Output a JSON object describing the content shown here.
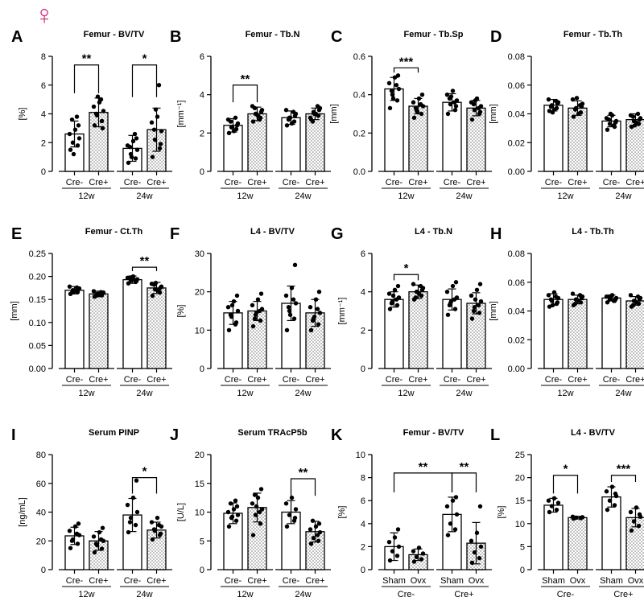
{
  "figure": {
    "sex_symbol": "♀",
    "symbol_color": "#d6307a"
  },
  "colors": {
    "axis": "#000000",
    "bar_fill": "#ffffff",
    "dot": "#000000",
    "stipple": "#6e6e6e"
  },
  "chart_data": [
    {
      "panel": "A",
      "title": "Femur - BV/TV",
      "type": "bar",
      "ylabel": "[%]",
      "ylim": [
        0,
        8
      ],
      "yticks": [
        0,
        2,
        4,
        6,
        8
      ],
      "ytick_labels": [
        "0",
        "2",
        "4",
        "6",
        "8"
      ],
      "categories": [
        "Cre-",
        "Cre+",
        "Cre-",
        "Cre+"
      ],
      "groups": [
        "12w",
        "24w"
      ],
      "values": [
        2.6,
        4.1,
        1.6,
        2.9
      ],
      "sd": [
        0.9,
        1.0,
        0.9,
        1.5
      ],
      "points": [
        [
          1.5,
          1.8,
          2.0,
          2.3,
          2.6,
          2.9,
          3.2,
          3.6,
          3.8,
          1.2
        ],
        [
          3.2,
          3.5,
          3.9,
          4.2,
          4.5,
          4.8,
          3.0,
          4.0,
          5.0,
          5.2
        ],
        [
          0.6,
          0.9,
          1.2,
          1.5,
          1.8,
          2.1,
          2.3,
          1.7,
          2.6,
          1.0
        ],
        [
          1.0,
          1.6,
          2.2,
          2.8,
          3.4,
          3.8,
          1.9,
          2.9,
          6.0,
          4.3
        ]
      ],
      "significance": [
        {
          "pair": [
            0,
            1
          ],
          "label": "**",
          "y": 7.4
        },
        {
          "pair": [
            2,
            3
          ],
          "label": "*",
          "y": 7.4
        }
      ]
    },
    {
      "panel": "B",
      "title": "Femur - Tb.N",
      "type": "bar",
      "ylabel": "[mm⁻¹]",
      "ylim": [
        0,
        6
      ],
      "yticks": [
        0,
        2,
        4,
        6
      ],
      "ytick_labels": [
        "0",
        "2",
        "4",
        "6"
      ],
      "categories": [
        "Cre-",
        "Cre+",
        "Cre-",
        "Cre+"
      ],
      "groups": [
        "12w",
        "24w"
      ],
      "values": [
        2.4,
        3.0,
        2.8,
        3.0
      ],
      "sd": [
        0.35,
        0.35,
        0.35,
        0.3
      ],
      "points": [
        [
          2.0,
          2.2,
          2.3,
          2.5,
          2.7,
          2.1,
          2.4,
          2.6,
          2.8,
          2.3
        ],
        [
          2.6,
          2.8,
          3.0,
          3.2,
          3.4,
          2.9,
          3.1,
          3.3,
          2.7,
          3.0
        ],
        [
          2.4,
          2.6,
          2.8,
          3.0,
          3.2,
          2.5,
          2.9,
          2.7,
          3.1,
          2.8
        ],
        [
          2.7,
          2.9,
          3.1,
          3.3,
          2.8,
          3.0,
          3.2,
          2.6,
          3.4,
          3.0
        ]
      ],
      "significance": [
        {
          "pair": [
            0,
            1
          ],
          "label": "**",
          "y": 4.5
        }
      ]
    },
    {
      "panel": "C",
      "title": "Femur - Tb.Sp",
      "type": "bar",
      "ylabel": "[mm]",
      "ylim": [
        0,
        0.6
      ],
      "yticks": [
        0,
        0.2,
        0.4,
        0.6
      ],
      "ytick_labels": [
        "0.0",
        "0.2",
        "0.4",
        "0.6"
      ],
      "categories": [
        "Cre-",
        "Cre+",
        "Cre-",
        "Cre+"
      ],
      "groups": [
        "12w",
        "24w"
      ],
      "values": [
        0.43,
        0.34,
        0.36,
        0.33
      ],
      "sd": [
        0.06,
        0.04,
        0.045,
        0.04
      ],
      "points": [
        [
          0.33,
          0.37,
          0.4,
          0.43,
          0.46,
          0.49,
          0.5,
          0.42,
          0.45,
          0.38
        ],
        [
          0.28,
          0.3,
          0.32,
          0.34,
          0.36,
          0.38,
          0.4,
          0.33,
          0.35,
          0.31
        ],
        [
          0.3,
          0.32,
          0.35,
          0.37,
          0.4,
          0.42,
          0.34,
          0.38,
          0.36,
          0.39
        ],
        [
          0.27,
          0.3,
          0.32,
          0.34,
          0.36,
          0.38,
          0.31,
          0.35,
          0.33,
          0.37
        ]
      ],
      "significance": [
        {
          "pair": [
            0,
            1
          ],
          "label": "***",
          "y": 0.54
        }
      ]
    },
    {
      "panel": "D",
      "title": "Femur - Tb.Th",
      "type": "bar",
      "ylabel": "[mm]",
      "ylim": [
        0,
        0.08
      ],
      "yticks": [
        0,
        0.02,
        0.04,
        0.06,
        0.08
      ],
      "ytick_labels": [
        "0.00",
        "0.02",
        "0.04",
        "0.06",
        "0.08"
      ],
      "categories": [
        "Cre-",
        "Cre+",
        "Cre-",
        "Cre+"
      ],
      "groups": [
        "12w",
        "24w"
      ],
      "values": [
        0.046,
        0.044,
        0.035,
        0.036
      ],
      "sd": [
        0.004,
        0.005,
        0.004,
        0.004
      ],
      "points": [
        [
          0.042,
          0.044,
          0.046,
          0.048,
          0.05,
          0.043,
          0.047,
          0.045,
          0.049,
          0.041
        ],
        [
          0.038,
          0.041,
          0.044,
          0.047,
          0.05,
          0.04,
          0.045,
          0.043,
          0.046,
          0.051
        ],
        [
          0.029,
          0.031,
          0.033,
          0.035,
          0.037,
          0.039,
          0.034,
          0.036,
          0.032,
          0.04
        ],
        [
          0.031,
          0.033,
          0.035,
          0.037,
          0.039,
          0.034,
          0.036,
          0.038,
          0.04,
          0.032
        ]
      ],
      "significance": []
    },
    {
      "panel": "E",
      "title": "Femur - Ct.Th",
      "type": "bar",
      "ylabel": "[mm]",
      "ylim": [
        0,
        0.25
      ],
      "yticks": [
        0,
        0.05,
        0.1,
        0.15,
        0.2,
        0.25
      ],
      "ytick_labels": [
        "0.00",
        "0.05",
        "0.10",
        "0.15",
        "0.20",
        "0.25"
      ],
      "categories": [
        "Cre-",
        "Cre+",
        "Cre-",
        "Cre+"
      ],
      "groups": [
        "12w",
        "24w"
      ],
      "values": [
        0.17,
        0.162,
        0.193,
        0.175
      ],
      "sd": [
        0.008,
        0.006,
        0.008,
        0.012
      ],
      "points": [
        [
          0.162,
          0.166,
          0.17,
          0.174,
          0.178,
          0.168,
          0.172,
          0.165,
          0.176,
          0.169
        ],
        [
          0.156,
          0.159,
          0.162,
          0.165,
          0.168,
          0.16,
          0.163,
          0.158,
          0.166,
          0.161
        ],
        [
          0.185,
          0.188,
          0.191,
          0.194,
          0.197,
          0.2,
          0.19,
          0.196,
          0.192,
          0.198
        ],
        [
          0.158,
          0.165,
          0.172,
          0.178,
          0.184,
          0.17,
          0.176,
          0.182,
          0.168,
          0.186
        ]
      ],
      "significance": [
        {
          "pair": [
            2,
            3
          ],
          "label": "**",
          "y": 0.22
        }
      ]
    },
    {
      "panel": "F",
      "title": "L4 - BV/TV",
      "type": "bar",
      "ylabel": "[%]",
      "ylim": [
        0,
        30
      ],
      "yticks": [
        0,
        10,
        20,
        30
      ],
      "ytick_labels": [
        "0",
        "10",
        "20",
        "30"
      ],
      "categories": [
        "Cre-",
        "Cre+",
        "Cre-",
        "Cre+"
      ],
      "groups": [
        "12w",
        "24w"
      ],
      "values": [
        14.5,
        15.0,
        17.0,
        14.5
      ],
      "sd": [
        3.0,
        2.5,
        4.5,
        3.5
      ],
      "points": [
        [
          10.0,
          12.0,
          13.5,
          15.0,
          16.0,
          17.5,
          19.0,
          14.0,
          11.5,
          16.5
        ],
        [
          11.0,
          12.5,
          14.0,
          15.5,
          16.5,
          18.0,
          19.5,
          13.0,
          15.0,
          14.5
        ],
        [
          10.0,
          13.0,
          15.0,
          17.0,
          19.0,
          21.0,
          27.0,
          16.0,
          18.0,
          14.0
        ],
        [
          10.0,
          11.5,
          13.0,
          14.5,
          16.0,
          18.0,
          20.0,
          12.5,
          15.5,
          13.5
        ]
      ],
      "significance": []
    },
    {
      "panel": "G",
      "title": "L4 - Tb.N",
      "type": "bar",
      "ylabel": "[mm⁻¹]",
      "ylim": [
        0,
        6
      ],
      "yticks": [
        0,
        2,
        4,
        6
      ],
      "ytick_labels": [
        "0",
        "2",
        "4",
        "6"
      ],
      "categories": [
        "Cre-",
        "Cre+",
        "Cre-",
        "Cre+"
      ],
      "groups": [
        "12w",
        "24w"
      ],
      "values": [
        3.6,
        4.0,
        3.6,
        3.4
      ],
      "sd": [
        0.4,
        0.35,
        0.55,
        0.55
      ],
      "points": [
        [
          3.1,
          3.3,
          3.5,
          3.7,
          3.9,
          4.1,
          4.3,
          3.4,
          3.6,
          3.8
        ],
        [
          3.6,
          3.8,
          4.0,
          4.2,
          4.4,
          3.9,
          4.1,
          3.7,
          4.3,
          4.0
        ],
        [
          2.8,
          3.1,
          3.4,
          3.7,
          4.0,
          4.3,
          4.5,
          3.3,
          3.6,
          3.5
        ],
        [
          2.6,
          2.9,
          3.2,
          3.5,
          3.8,
          4.1,
          4.4,
          3.0,
          3.3,
          3.6
        ]
      ],
      "significance": [
        {
          "pair": [
            0,
            1
          ],
          "label": "*",
          "y": 4.9
        }
      ]
    },
    {
      "panel": "H",
      "title": "L4 - Tb.Th",
      "type": "bar",
      "ylabel": "[mm]",
      "ylim": [
        0,
        0.08
      ],
      "yticks": [
        0,
        0.02,
        0.04,
        0.06,
        0.08
      ],
      "ytick_labels": [
        "0.00",
        "0.02",
        "0.04",
        "0.06",
        "0.08"
      ],
      "categories": [
        "Cre-",
        "Cre+",
        "Cre-",
        "Cre+"
      ],
      "groups": [
        "12w",
        "24w"
      ],
      "values": [
        0.048,
        0.048,
        0.049,
        0.047
      ],
      "sd": [
        0.004,
        0.003,
        0.002,
        0.003
      ],
      "points": [
        [
          0.043,
          0.045,
          0.047,
          0.049,
          0.051,
          0.053,
          0.046,
          0.048,
          0.05,
          0.044
        ],
        [
          0.044,
          0.046,
          0.048,
          0.05,
          0.052,
          0.047,
          0.049,
          0.045,
          0.051,
          0.048
        ],
        [
          0.046,
          0.047,
          0.048,
          0.049,
          0.05,
          0.051,
          0.048,
          0.05,
          0.047,
          0.049
        ],
        [
          0.043,
          0.045,
          0.047,
          0.049,
          0.051,
          0.046,
          0.048,
          0.044,
          0.05,
          0.047
        ]
      ],
      "significance": []
    },
    {
      "panel": "I",
      "title": "Serum PINP",
      "type": "bar",
      "ylabel": "[ng/mL]",
      "ylim": [
        0,
        80
      ],
      "yticks": [
        0,
        20,
        40,
        60,
        80
      ],
      "ytick_labels": [
        "0",
        "20",
        "40",
        "60",
        "80"
      ],
      "categories": [
        "Cre-",
        "Cre+",
        "Cre-",
        "Cre+"
      ],
      "groups": [
        "12w",
        "24w"
      ],
      "values": [
        23.5,
        20.0,
        38.0,
        27.5
      ],
      "sd": [
        6.0,
        6.5,
        11.5,
        5.5
      ],
      "points": [
        [
          15.0,
          18.0,
          21.0,
          24.0,
          27.0,
          30.0,
          32.0,
          20.0,
          25.0
        ],
        [
          12.0,
          14.5,
          17.0,
          20.0,
          23.0,
          26.0,
          29.0,
          18.0,
          21.0
        ],
        [
          26.0,
          31.0,
          36.0,
          40.0,
          45.0,
          50.0,
          62.0,
          33.0
        ],
        [
          21.0,
          24.0,
          27.0,
          30.0,
          33.0,
          36.0,
          25.0,
          28.0,
          31.0
        ]
      ],
      "significance": [
        {
          "pair": [
            2,
            3
          ],
          "label": "*",
          "y": 64.0
        }
      ]
    },
    {
      "panel": "J",
      "title": "Serum TRAcP5b",
      "type": "bar",
      "ylabel": "[U/L]",
      "ylim": [
        0,
        20
      ],
      "yticks": [
        0,
        5,
        10,
        15,
        20
      ],
      "ytick_labels": [
        "0",
        "5",
        "10",
        "15",
        "20"
      ],
      "categories": [
        "Cre-",
        "Cre+",
        "Cre-",
        "Cre+"
      ],
      "groups": [
        "12w",
        "24w"
      ],
      "values": [
        9.8,
        10.8,
        10.0,
        6.6
      ],
      "sd": [
        1.8,
        2.5,
        2.0,
        1.8
      ],
      "points": [
        [
          7.5,
          8.5,
          9.0,
          9.5,
          10.0,
          10.5,
          11.0,
          11.5,
          12.0,
          9.2
        ],
        [
          6.0,
          8.0,
          9.5,
          10.5,
          11.5,
          12.5,
          14.0,
          13.0,
          10.0,
          11.0
        ],
        [
          7.5,
          8.5,
          9.5,
          10.5,
          11.5,
          12.5,
          9.0
        ],
        [
          4.5,
          5.0,
          5.5,
          6.5,
          7.0,
          7.5,
          8.0,
          8.5,
          6.0
        ]
      ],
      "significance": [
        {
          "pair": [
            2,
            3
          ],
          "label": "**",
          "y": 15.8
        }
      ]
    },
    {
      "panel": "K",
      "title": "Femur - BV/TV",
      "type": "bar",
      "ylabel": "[%]",
      "ylim": [
        0,
        10
      ],
      "yticks": [
        0,
        2,
        4,
        6,
        8,
        10
      ],
      "ytick_labels": [
        "0",
        "2",
        "4",
        "6",
        "8",
        "10"
      ],
      "categories": [
        "Sham",
        "Ovx",
        "Sham",
        "Ovx"
      ],
      "groups": [
        "Cre-",
        "Cre+"
      ],
      "values": [
        2.0,
        1.3,
        4.8,
        2.3
      ],
      "sd": [
        1.2,
        0.5,
        1.5,
        1.8
      ],
      "points": [
        [
          0.8,
          1.2,
          1.6,
          2.0,
          2.4,
          2.8,
          3.5
        ],
        [
          0.7,
          0.9,
          1.1,
          1.4,
          1.6,
          1.9
        ],
        [
          3.0,
          3.5,
          4.0,
          4.8,
          5.5,
          6.0,
          6.3
        ],
        [
          0.6,
          1.0,
          1.5,
          2.0,
          2.5,
          3.2,
          5.5
        ]
      ],
      "significance": [
        {
          "pair": [
            0,
            2
          ],
          "label": "**",
          "y": 8.4
        },
        {
          "pair": [
            2,
            3
          ],
          "label": "**",
          "y": 8.4
        }
      ]
    },
    {
      "panel": "L",
      "title": "L4 - BV/TV",
      "type": "bar",
      "ylabel": "[%]",
      "ylim": [
        0,
        25
      ],
      "yticks": [
        0,
        5,
        10,
        15,
        20,
        25
      ],
      "ytick_labels": [
        "0",
        "5",
        "10",
        "15",
        "20",
        "25"
      ],
      "categories": [
        "Sham",
        "Ovx",
        "Sham",
        "Ovx"
      ],
      "groups": [
        "Cre-",
        "Cre+"
      ],
      "values": [
        14.0,
        11.3,
        15.8,
        11.3
      ],
      "sd": [
        1.5,
        0.3,
        2.2,
        2.0
      ],
      "points": [
        [
          12.5,
          13.0,
          13.8,
          14.5,
          15.0,
          15.5
        ],
        [
          11.1,
          11.2,
          11.3,
          11.4,
          11.5
        ],
        [
          13.0,
          14.0,
          15.0,
          16.0,
          17.0,
          18.0,
          16.5
        ],
        [
          8.5,
          9.5,
          10.5,
          11.5,
          12.5,
          13.5,
          12.0
        ]
      ],
      "significance": [
        {
          "pair": [
            0,
            1
          ],
          "label": "*",
          "y": 20.5
        },
        {
          "pair": [
            2,
            3
          ],
          "label": "***",
          "y": 20.5
        }
      ]
    }
  ]
}
